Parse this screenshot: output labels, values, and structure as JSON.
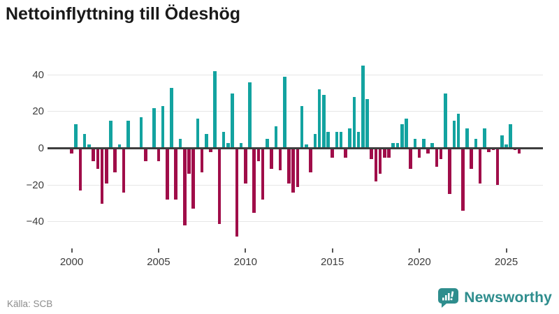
{
  "title": "Nettoinflyttning till Ödeshög",
  "source": "Källa: SCB",
  "logo": {
    "text": "Newsworthy",
    "icon": "newsworthy-speech-bubble-barchart-icon"
  },
  "colors": {
    "positive": "#13a3a0",
    "negative": "#a00d49",
    "zero_line": "#3d3d3d",
    "gridline": "#e6e6e6",
    "logo_teal": "#2e8d8d"
  },
  "chart_data": {
    "type": "bar",
    "title": "Nettoinflyttning till Ödeshög",
    "xlabel": "",
    "ylabel": "",
    "start_year": 2000,
    "period": "quarterly",
    "x_tick_labels": [
      "2000",
      "2005",
      "2010",
      "2015",
      "2020",
      "2025"
    ],
    "y_ticks": [
      40,
      20,
      0,
      -20,
      -40
    ],
    "ylim": [
      -50,
      47
    ],
    "grid": true,
    "legend": false,
    "values": [
      -3,
      13,
      -23,
      8,
      2,
      -7,
      -11,
      -30,
      -19,
      15,
      -13,
      2,
      -24,
      15,
      0,
      0,
      17,
      -7,
      0,
      22,
      -7,
      23,
      -28,
      33,
      -28,
      5,
      -42,
      -14,
      -33,
      16,
      -13,
      8,
      -2,
      42,
      -41,
      9,
      3,
      30,
      -48,
      3,
      -19,
      36,
      -35,
      -7,
      -28,
      5,
      -11,
      12,
      -12,
      39,
      -19,
      -24,
      -21,
      23,
      2,
      -13,
      8,
      32,
      29,
      9,
      -5,
      9,
      9,
      -5,
      11,
      28,
      9,
      45,
      27,
      -6,
      -18,
      -14,
      -5,
      -5,
      3,
      3,
      13,
      16,
      -11,
      5,
      -5,
      5,
      -3,
      3,
      -10,
      -6,
      30,
      -25,
      15,
      19,
      -34,
      11,
      -11,
      5,
      -19,
      11,
      -2,
      -1,
      -20,
      7,
      2,
      13,
      -1,
      -3
    ]
  }
}
